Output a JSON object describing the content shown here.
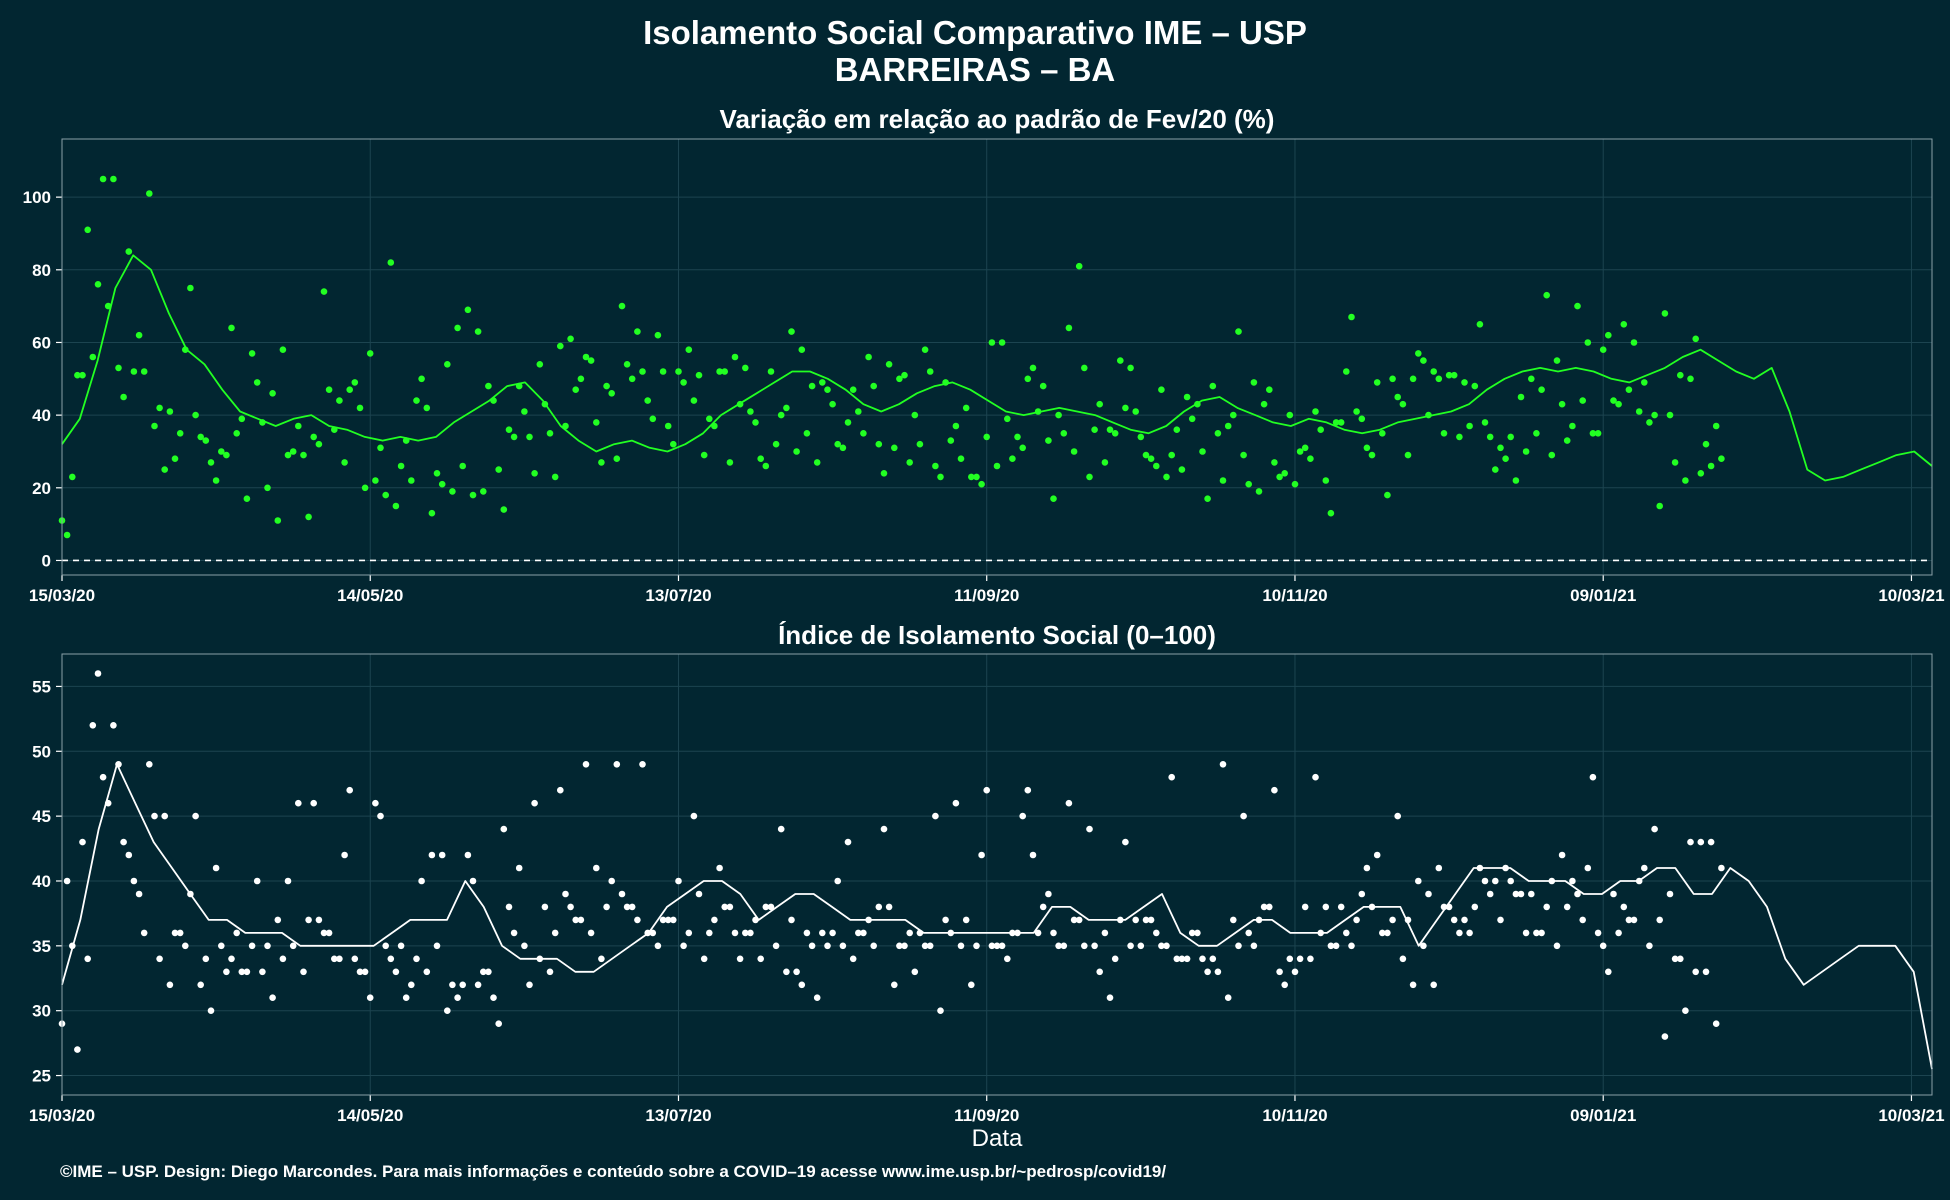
{
  "title_line1": "Isolamento Social Comparativo IME – USP",
  "title_line2": "BARREIRAS – BA",
  "xlabel": "Data",
  "credit": "©IME – USP. Design: Diego Marcondes. Para mais informações e conteúdo sobre a COVID–19 acesse www.ime.usp.br/~pedrosp/covid19/",
  "colors": {
    "background": "#022631",
    "panel": "#022631",
    "grid": "#1c4450",
    "top_series": "#22ff22",
    "bottom_series": "#ffffff"
  },
  "chart_data": [
    {
      "type": "scatter",
      "title": "Variação em relação ao padrão de Fev/20 (%)",
      "x_tick_labels": [
        "15/03/20",
        "14/05/20",
        "13/07/20",
        "11/09/20",
        "10/11/20",
        "09/01/21",
        "10/03/21"
      ],
      "y_ticks": [
        0,
        20,
        40,
        60,
        80,
        100
      ],
      "ylim": [
        -4,
        116
      ],
      "reference_line": 0,
      "series": [
        {
          "style": "points",
          "x_day_step": 2,
          "values": [
            11,
            23,
            51,
            56,
            105,
            105,
            45,
            52,
            52,
            37,
            25,
            28,
            58,
            40,
            33,
            22,
            29,
            35,
            17,
            49,
            20,
            11,
            29,
            37,
            12,
            32,
            47,
            44,
            47,
            42,
            57,
            31,
            82,
            26,
            22,
            50,
            13,
            21,
            19,
            26,
            18,
            19,
            44,
            14,
            34,
            41,
            24,
            43,
            23,
            37,
            47,
            56,
            38,
            48,
            28,
            54,
            63,
            44,
            62,
            37,
            52,
            58,
            51,
            39,
            52,
            27,
            43,
            41,
            28,
            52,
            40,
            63,
            58,
            48,
            49,
            43,
            31,
            47,
            35,
            48,
            24,
            31,
            51,
            40,
            58,
            26,
            49,
            37,
            42,
            23,
            34,
            26,
            39,
            34,
            50,
            41,
            33,
            40,
            64,
            81,
            23,
            43,
            36,
            55,
            53,
            34,
            28,
            47,
            29,
            25,
            39,
            30,
            48,
            22,
            40,
            29,
            49,
            43,
            27,
            24,
            21,
            31,
            41,
            22,
            38,
            52,
            41,
            31,
            49,
            18,
            45,
            29,
            57,
            40,
            50,
            51,
            34,
            37,
            65,
            34,
            31,
            34,
            45,
            50,
            47,
            29,
            43,
            37,
            44,
            35,
            58,
            44,
            65,
            60,
            49,
            40,
            68,
            27,
            22,
            61,
            32,
            37
          ]
        },
        {
          "style": "points",
          "x_day_step": 2,
          "values": [
            7,
            51,
            91,
            76,
            70,
            53,
            85,
            62,
            101,
            42,
            41,
            35,
            75,
            34,
            27,
            30,
            64,
            39,
            57,
            38,
            46,
            58,
            30,
            29,
            34,
            74,
            36,
            27,
            49,
            20,
            22,
            18,
            15,
            33,
            44,
            42,
            24,
            54,
            64,
            69,
            63,
            48,
            25,
            36,
            48,
            34,
            54,
            35,
            59,
            61,
            50,
            55,
            27,
            46,
            70,
            50,
            52,
            39,
            52,
            32,
            49,
            44,
            29,
            37,
            52,
            56,
            53,
            38,
            26,
            32,
            42,
            30,
            35,
            27,
            47,
            32,
            38,
            41,
            56,
            32,
            54,
            50,
            27,
            32,
            52,
            23,
            33,
            28,
            23,
            21,
            60,
            60,
            28,
            31,
            53,
            48,
            17,
            35,
            30,
            53,
            36,
            27,
            35,
            42,
            41,
            29,
            26,
            23,
            36,
            45,
            43,
            17,
            35,
            37,
            63,
            21,
            19,
            47,
            23,
            40,
            30,
            28,
            36,
            13,
            38,
            67,
            39,
            29,
            35,
            50,
            43,
            50,
            55,
            52,
            35,
            51,
            49,
            48,
            38,
            25,
            28,
            22,
            30,
            35,
            73,
            55,
            33,
            70,
            60,
            35,
            62,
            43,
            47,
            41,
            38,
            15,
            40,
            51,
            50,
            24,
            26,
            28
          ]
        }
      ],
      "moving_average": [
        32,
        39,
        55,
        75,
        84,
        80,
        68,
        58,
        54,
        47,
        41,
        39,
        37,
        39,
        40,
        37,
        36,
        34,
        33,
        34,
        33,
        34,
        38,
        41,
        44,
        48,
        49,
        44,
        37,
        33,
        30,
        32,
        33,
        31,
        30,
        32,
        35,
        40,
        43,
        46,
        49,
        52,
        52,
        50,
        47,
        43,
        41,
        43,
        46,
        48,
        49,
        47,
        44,
        41,
        40,
        41,
        42,
        41,
        40,
        38,
        36,
        35,
        37,
        41,
        44,
        45,
        42,
        40,
        38,
        37,
        39,
        38,
        36,
        35,
        36,
        38,
        39,
        40,
        41,
        43,
        47,
        50,
        52,
        53,
        52,
        53,
        52,
        50,
        49,
        51,
        53,
        56,
        58,
        55,
        52,
        50,
        53,
        41,
        25,
        22,
        23,
        25,
        27,
        29,
        30,
        26
      ]
    },
    {
      "type": "scatter",
      "title": "Índice de Isolamento Social (0–100)",
      "x_tick_labels": [
        "15/03/20",
        "14/05/20",
        "13/07/20",
        "11/09/20",
        "10/11/20",
        "09/01/21",
        "10/03/21"
      ],
      "y_ticks": [
        25,
        30,
        35,
        40,
        45,
        50,
        55
      ],
      "ylim": [
        23.5,
        57.5
      ],
      "series": [
        {
          "style": "points",
          "x_day_step": 2,
          "values": [
            29,
            35,
            43,
            52,
            48,
            52,
            43,
            40,
            36,
            45,
            45,
            36,
            35,
            45,
            34,
            41,
            33,
            36,
            33,
            40,
            35,
            37,
            40,
            46,
            37,
            37,
            36,
            34,
            47,
            33,
            31,
            45,
            34,
            35,
            32,
            40,
            42,
            42,
            32,
            32,
            40,
            33,
            31,
            44,
            36,
            35,
            46,
            38,
            36,
            39,
            37,
            49,
            41,
            38,
            49,
            38,
            37,
            36,
            35,
            37,
            40,
            36,
            39,
            36,
            41,
            38,
            34,
            36,
            34,
            38,
            44,
            37,
            32,
            35,
            36,
            36,
            35,
            34,
            36,
            35,
            44,
            32,
            35,
            33,
            35,
            45,
            37,
            46,
            37,
            35,
            47,
            35,
            34,
            36,
            47,
            36,
            39,
            35,
            46,
            37,
            44,
            33,
            31,
            37,
            35,
            35,
            37,
            35,
            48,
            34,
            36,
            34,
            34,
            49,
            37,
            45,
            35,
            38,
            47,
            32,
            33,
            38,
            48,
            38,
            35,
            36,
            37,
            41,
            42,
            36,
            45,
            37,
            40,
            39,
            41,
            38,
            36,
            36,
            41,
            39,
            37,
            40,
            39,
            39,
            36,
            40,
            42,
            40,
            37,
            48,
            35,
            39,
            38,
            37,
            41,
            44,
            28,
            34,
            30,
            33,
            33,
            29
          ]
        },
        {
          "style": "points",
          "x_day_step": 2,
          "values": [
            40,
            27,
            34,
            56,
            46,
            49,
            42,
            39,
            49,
            34,
            32,
            36,
            39,
            32,
            30,
            35,
            34,
            33,
            35,
            33,
            31,
            34,
            35,
            33,
            46,
            36,
            34,
            42,
            34,
            33,
            46,
            35,
            33,
            31,
            34,
            33,
            35,
            30,
            31,
            42,
            32,
            33,
            29,
            38,
            41,
            32,
            34,
            33,
            47,
            38,
            37,
            36,
            34,
            40,
            39,
            38,
            49,
            36,
            37,
            37,
            35,
            45,
            34,
            37,
            38,
            36,
            36,
            37,
            38,
            35,
            33,
            33,
            36,
            31,
            35,
            40,
            43,
            36,
            37,
            38,
            38,
            35,
            36,
            36,
            35,
            30,
            36,
            35,
            32,
            42,
            35,
            35,
            36,
            45,
            42,
            38,
            36,
            35,
            37,
            35,
            35,
            36,
            34,
            43,
            37,
            37,
            36,
            35,
            34,
            34,
            36,
            33,
            33,
            31,
            35,
            36,
            37,
            38,
            33,
            34,
            34,
            34,
            36,
            35,
            38,
            35,
            39,
            38,
            36,
            37,
            34,
            32,
            35,
            32,
            38,
            37,
            37,
            38,
            40,
            40,
            41,
            39,
            36,
            36,
            38,
            35,
            38,
            39,
            41,
            36,
            33,
            36,
            37,
            40,
            35,
            37,
            39,
            34,
            43,
            43,
            43,
            41
          ]
        }
      ],
      "moving_average": [
        32,
        37,
        44,
        49,
        46,
        43,
        41,
        39,
        37,
        37,
        36,
        36,
        36,
        35,
        35,
        35,
        35,
        35,
        36,
        37,
        37,
        37,
        40,
        38,
        35,
        34,
        34,
        34,
        33,
        33,
        34,
        35,
        36,
        38,
        39,
        40,
        40,
        39,
        37,
        38,
        39,
        39,
        38,
        37,
        37,
        37,
        37,
        36,
        36,
        36,
        36,
        36,
        36,
        36,
        38,
        38,
        37,
        37,
        37,
        38,
        39,
        36,
        35,
        35,
        36,
        37,
        37,
        36,
        36,
        36,
        37,
        38,
        38,
        38,
        35,
        37,
        39,
        41,
        41,
        41,
        40,
        40,
        40,
        39,
        39,
        40,
        40,
        41,
        41,
        39,
        39,
        41,
        40,
        38,
        34,
        32,
        33,
        34,
        35,
        35,
        35,
        33,
        25.5
      ]
    }
  ]
}
